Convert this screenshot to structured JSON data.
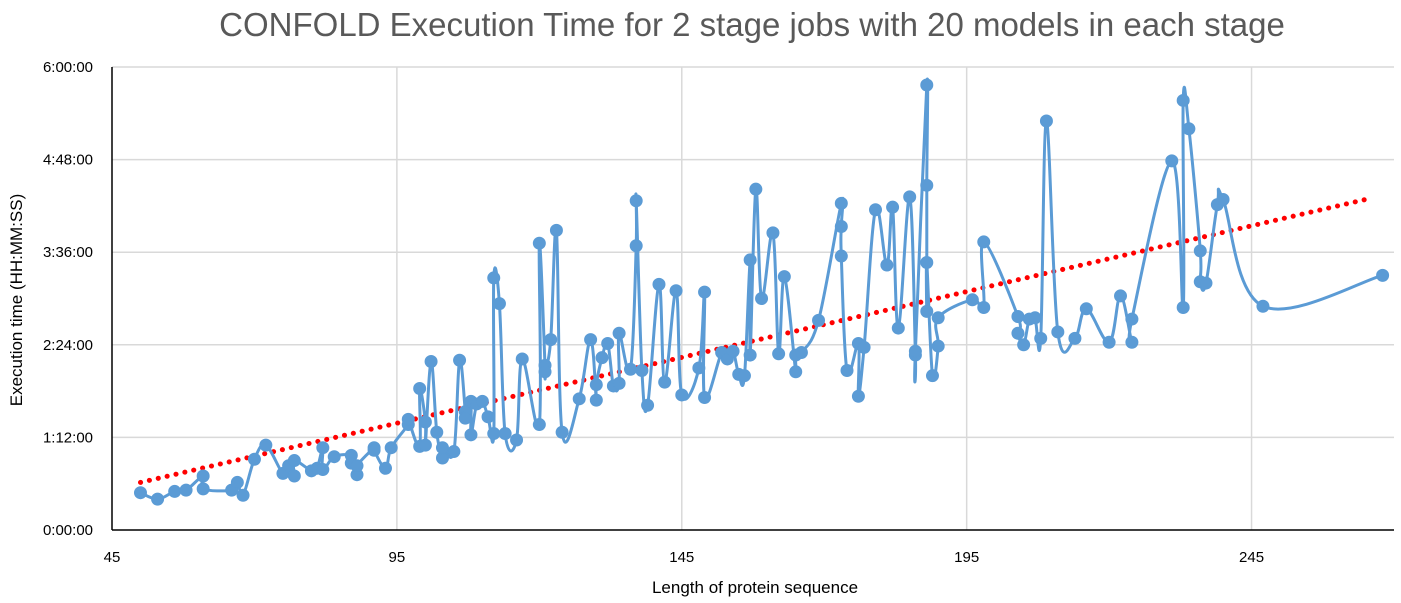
{
  "chart_data": {
    "type": "scatter",
    "title": "CONFOLD Execution Time for 2 stage jobs with 20 models in each stage",
    "xlabel": "Length of protein sequence",
    "ylabel": "Execution time (HH:MM:SS)",
    "xlim": [
      45,
      270
    ],
    "ylim": [
      0,
      360
    ],
    "y_unit": "minutes",
    "x_ticks": [
      45,
      95,
      145,
      195,
      245
    ],
    "y_ticks": [
      {
        "value": 0,
        "label": "0:00:00"
      },
      {
        "value": 72,
        "label": "1:12:00"
      },
      {
        "value": 144,
        "label": "2:24:00"
      },
      {
        "value": 216,
        "label": "3:36:00"
      },
      {
        "value": 288,
        "label": "4:48:00"
      },
      {
        "value": 360,
        "label": "6:00:00"
      }
    ],
    "grid": "vertical-and-horizontal",
    "legend": "none",
    "colors": {
      "series": "#5B9BD5",
      "trend": "#FF0000",
      "grid": "#D9D9D9",
      "axis": "#000000",
      "title": "#595959"
    },
    "series": [
      {
        "marker": "circle",
        "line": "smoothed",
        "points": [
          [
            50,
            29
          ],
          [
            53,
            24
          ],
          [
            56,
            30
          ],
          [
            58,
            31
          ],
          [
            61,
            42
          ],
          [
            61,
            32
          ],
          [
            66,
            31
          ],
          [
            67,
            37
          ],
          [
            68,
            27
          ],
          [
            70,
            55
          ],
          [
            72,
            66
          ],
          [
            75,
            44
          ],
          [
            76,
            50
          ],
          [
            77,
            42
          ],
          [
            77,
            54
          ],
          [
            80,
            46
          ],
          [
            81,
            48
          ],
          [
            82,
            64
          ],
          [
            82,
            47
          ],
          [
            84,
            57
          ],
          [
            87,
            58
          ],
          [
            87,
            52
          ],
          [
            88,
            43
          ],
          [
            88,
            50
          ],
          [
            91,
            64
          ],
          [
            91,
            62
          ],
          [
            93,
            48
          ],
          [
            94,
            64
          ],
          [
            97,
            82
          ],
          [
            97,
            86
          ],
          [
            99,
            65
          ],
          [
            99,
            110
          ],
          [
            100,
            84
          ],
          [
            100,
            66
          ],
          [
            101,
            131
          ],
          [
            102,
            76
          ],
          [
            103,
            56
          ],
          [
            103,
            64
          ],
          [
            105,
            61
          ],
          [
            106,
            132
          ],
          [
            107,
            92
          ],
          [
            107,
            87
          ],
          [
            108,
            100
          ],
          [
            108,
            74
          ],
          [
            109,
            98
          ],
          [
            110,
            100
          ],
          [
            111,
            88
          ],
          [
            112,
            75
          ],
          [
            112,
            196
          ],
          [
            113,
            176
          ],
          [
            114,
            75
          ],
          [
            116,
            70
          ],
          [
            117,
            133
          ],
          [
            120,
            82
          ],
          [
            120,
            223
          ],
          [
            121,
            128
          ],
          [
            121,
            123
          ],
          [
            122,
            148
          ],
          [
            123,
            233
          ],
          [
            124,
            76
          ],
          [
            127,
            102
          ],
          [
            129,
            148
          ],
          [
            130,
            101
          ],
          [
            130,
            113
          ],
          [
            131,
            134
          ],
          [
            132,
            145
          ],
          [
            133,
            112
          ],
          [
            134,
            114
          ],
          [
            134,
            153
          ],
          [
            136,
            125
          ],
          [
            137,
            221
          ],
          [
            137,
            256
          ],
          [
            138,
            124
          ],
          [
            139,
            97
          ],
          [
            141,
            191
          ],
          [
            142,
            115
          ],
          [
            144,
            186
          ],
          [
            145,
            105
          ],
          [
            148,
            126
          ],
          [
            149,
            185
          ],
          [
            149,
            103
          ],
          [
            152,
            138
          ],
          [
            153,
            133
          ],
          [
            154,
            139
          ],
          [
            155,
            121
          ],
          [
            156,
            120
          ],
          [
            157,
            210
          ],
          [
            157,
            136
          ],
          [
            158,
            265
          ],
          [
            159,
            180
          ],
          [
            161,
            231
          ],
          [
            162,
            137
          ],
          [
            163,
            197
          ],
          [
            165,
            123
          ],
          [
            165,
            136
          ],
          [
            166,
            138
          ],
          [
            169,
            163
          ],
          [
            173,
            254
          ],
          [
            173,
            236
          ],
          [
            173,
            213
          ],
          [
            174,
            124
          ],
          [
            176,
            145
          ],
          [
            176,
            104
          ],
          [
            177,
            142
          ],
          [
            179,
            249
          ],
          [
            181,
            206
          ],
          [
            182,
            251
          ],
          [
            183,
            157
          ],
          [
            185,
            259
          ],
          [
            186,
            136
          ],
          [
            186,
            139
          ],
          [
            188,
            346
          ],
          [
            188,
            268
          ],
          [
            188,
            170
          ],
          [
            188,
            208
          ],
          [
            189,
            120
          ],
          [
            190,
            143
          ],
          [
            190,
            165
          ],
          [
            196,
            179
          ],
          [
            198,
            173
          ],
          [
            198,
            224
          ],
          [
            204,
            166
          ],
          [
            204,
            153
          ],
          [
            205,
            144
          ],
          [
            206,
            164
          ],
          [
            207,
            165
          ],
          [
            208,
            149
          ],
          [
            209,
            318
          ],
          [
            211,
            154
          ],
          [
            214,
            149
          ],
          [
            216,
            172
          ],
          [
            220,
            146
          ],
          [
            222,
            182
          ],
          [
            224,
            146
          ],
          [
            224,
            164
          ],
          [
            231,
            287
          ],
          [
            233,
            173
          ],
          [
            233,
            334
          ],
          [
            234,
            312
          ],
          [
            236,
            217
          ],
          [
            236,
            193
          ],
          [
            237,
            192
          ],
          [
            239,
            253
          ],
          [
            240,
            257
          ],
          [
            247,
            174
          ],
          [
            268,
            198
          ]
        ]
      }
    ],
    "trendline": {
      "type": "linear",
      "style": "dotted",
      "x": [
        50,
        266
      ],
      "y": [
        37,
        258
      ]
    }
  }
}
